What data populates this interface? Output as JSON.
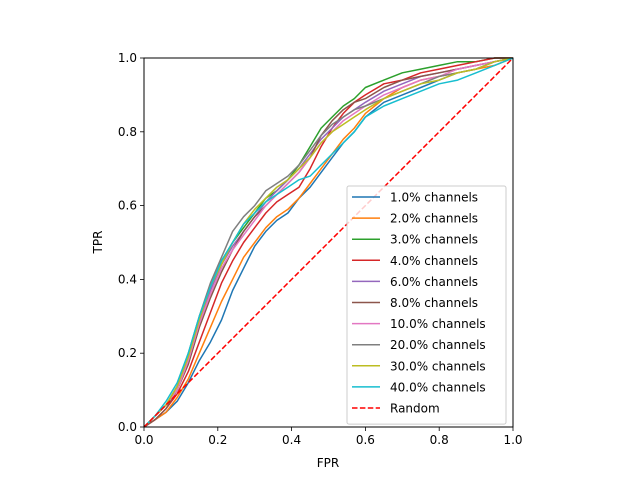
{
  "chart_data": {
    "type": "line",
    "title": "",
    "xlabel": "FPR",
    "ylabel": "TPR",
    "xlim": [
      0,
      1
    ],
    "ylim": [
      0,
      1
    ],
    "xticks": [
      "0.0",
      "0.2",
      "0.4",
      "0.6",
      "0.8",
      "1.0"
    ],
    "yticks": [
      "0.0",
      "0.2",
      "0.4",
      "0.6",
      "0.8",
      "1.0"
    ],
    "grid": false,
    "legend_position": "lower-right",
    "series": [
      {
        "name": "1.0% channels",
        "color": "#1f77b4",
        "x": [
          0,
          0.03,
          0.06,
          0.09,
          0.12,
          0.15,
          0.18,
          0.21,
          0.24,
          0.27,
          0.3,
          0.33,
          0.36,
          0.39,
          0.42,
          0.45,
          0.48,
          0.51,
          0.54,
          0.57,
          0.6,
          0.65,
          0.7,
          0.75,
          0.8,
          0.85,
          0.9,
          0.95,
          1.0
        ],
        "y": [
          0,
          0.02,
          0.04,
          0.07,
          0.12,
          0.18,
          0.23,
          0.29,
          0.37,
          0.43,
          0.49,
          0.53,
          0.56,
          0.58,
          0.62,
          0.65,
          0.69,
          0.73,
          0.77,
          0.8,
          0.84,
          0.88,
          0.9,
          0.92,
          0.94,
          0.96,
          0.97,
          0.99,
          1.0
        ]
      },
      {
        "name": "2.0% channels",
        "color": "#ff7f0e",
        "x": [
          0,
          0.03,
          0.06,
          0.09,
          0.12,
          0.15,
          0.18,
          0.21,
          0.24,
          0.27,
          0.3,
          0.33,
          0.36,
          0.39,
          0.42,
          0.45,
          0.48,
          0.51,
          0.54,
          0.57,
          0.6,
          0.65,
          0.7,
          0.75,
          0.8,
          0.85,
          0.9,
          0.95,
          1.0
        ],
        "y": [
          0,
          0.02,
          0.04,
          0.08,
          0.13,
          0.2,
          0.27,
          0.34,
          0.4,
          0.46,
          0.5,
          0.54,
          0.57,
          0.59,
          0.62,
          0.66,
          0.7,
          0.74,
          0.78,
          0.81,
          0.85,
          0.89,
          0.92,
          0.94,
          0.95,
          0.96,
          0.97,
          0.98,
          1.0
        ]
      },
      {
        "name": "3.0% channels",
        "color": "#2ca02c",
        "x": [
          0,
          0.03,
          0.06,
          0.09,
          0.12,
          0.15,
          0.18,
          0.21,
          0.24,
          0.27,
          0.3,
          0.33,
          0.36,
          0.39,
          0.42,
          0.45,
          0.48,
          0.51,
          0.54,
          0.57,
          0.6,
          0.65,
          0.7,
          0.75,
          0.8,
          0.85,
          0.9,
          0.95,
          1.0
        ],
        "y": [
          0,
          0.03,
          0.06,
          0.11,
          0.19,
          0.29,
          0.38,
          0.45,
          0.5,
          0.54,
          0.58,
          0.62,
          0.64,
          0.67,
          0.71,
          0.76,
          0.81,
          0.84,
          0.87,
          0.89,
          0.92,
          0.94,
          0.96,
          0.97,
          0.98,
          0.99,
          0.99,
          1.0,
          1.0
        ]
      },
      {
        "name": "4.0% channels",
        "color": "#d62728",
        "x": [
          0,
          0.03,
          0.06,
          0.09,
          0.12,
          0.15,
          0.18,
          0.21,
          0.24,
          0.27,
          0.3,
          0.33,
          0.36,
          0.39,
          0.42,
          0.45,
          0.48,
          0.51,
          0.54,
          0.57,
          0.6,
          0.65,
          0.7,
          0.75,
          0.8,
          0.85,
          0.9,
          0.95,
          1.0
        ],
        "y": [
          0,
          0.02,
          0.05,
          0.09,
          0.15,
          0.23,
          0.31,
          0.39,
          0.45,
          0.5,
          0.54,
          0.58,
          0.61,
          0.63,
          0.65,
          0.7,
          0.76,
          0.81,
          0.85,
          0.88,
          0.9,
          0.93,
          0.94,
          0.96,
          0.97,
          0.98,
          0.99,
          1.0,
          1.0
        ]
      },
      {
        "name": "6.0% channels",
        "color": "#9467bd",
        "x": [
          0,
          0.03,
          0.06,
          0.09,
          0.12,
          0.15,
          0.18,
          0.21,
          0.24,
          0.27,
          0.3,
          0.33,
          0.36,
          0.39,
          0.42,
          0.45,
          0.48,
          0.51,
          0.54,
          0.57,
          0.6,
          0.65,
          0.7,
          0.75,
          0.8,
          0.85,
          0.9,
          0.95,
          1.0
        ],
        "y": [
          0,
          0.03,
          0.06,
          0.11,
          0.19,
          0.29,
          0.37,
          0.44,
          0.49,
          0.53,
          0.57,
          0.61,
          0.64,
          0.67,
          0.7,
          0.74,
          0.78,
          0.81,
          0.84,
          0.86,
          0.88,
          0.91,
          0.93,
          0.95,
          0.96,
          0.97,
          0.98,
          0.99,
          1.0
        ]
      },
      {
        "name": "8.0% channels",
        "color": "#8c564b",
        "x": [
          0,
          0.03,
          0.06,
          0.09,
          0.12,
          0.15,
          0.18,
          0.21,
          0.24,
          0.27,
          0.3,
          0.33,
          0.36,
          0.39,
          0.42,
          0.45,
          0.48,
          0.51,
          0.54,
          0.57,
          0.6,
          0.65,
          0.7,
          0.75,
          0.8,
          0.85,
          0.9,
          0.95,
          1.0
        ],
        "y": [
          0,
          0.02,
          0.05,
          0.1,
          0.17,
          0.27,
          0.35,
          0.42,
          0.48,
          0.53,
          0.57,
          0.6,
          0.63,
          0.66,
          0.69,
          0.73,
          0.79,
          0.83,
          0.86,
          0.88,
          0.89,
          0.92,
          0.94,
          0.95,
          0.96,
          0.97,
          0.98,
          0.99,
          1.0
        ]
      },
      {
        "name": "10.0% channels",
        "color": "#e377c2",
        "x": [
          0,
          0.03,
          0.06,
          0.09,
          0.12,
          0.15,
          0.18,
          0.21,
          0.24,
          0.27,
          0.3,
          0.33,
          0.36,
          0.39,
          0.42,
          0.45,
          0.48,
          0.51,
          0.54,
          0.57,
          0.6,
          0.65,
          0.7,
          0.75,
          0.8,
          0.85,
          0.9,
          0.95,
          1.0
        ],
        "y": [
          0,
          0.03,
          0.06,
          0.1,
          0.18,
          0.28,
          0.36,
          0.43,
          0.48,
          0.52,
          0.56,
          0.6,
          0.63,
          0.66,
          0.69,
          0.73,
          0.77,
          0.8,
          0.83,
          0.85,
          0.87,
          0.9,
          0.92,
          0.94,
          0.95,
          0.97,
          0.98,
          0.99,
          1.0
        ]
      },
      {
        "name": "20.0% channels",
        "color": "#7f7f7f",
        "x": [
          0,
          0.03,
          0.06,
          0.09,
          0.12,
          0.15,
          0.18,
          0.21,
          0.24,
          0.27,
          0.3,
          0.33,
          0.36,
          0.39,
          0.42,
          0.45,
          0.48,
          0.51,
          0.54,
          0.57,
          0.6,
          0.65,
          0.7,
          0.75,
          0.8,
          0.85,
          0.9,
          0.95,
          1.0
        ],
        "y": [
          0,
          0.03,
          0.06,
          0.11,
          0.2,
          0.3,
          0.39,
          0.46,
          0.53,
          0.57,
          0.6,
          0.64,
          0.66,
          0.68,
          0.71,
          0.75,
          0.79,
          0.82,
          0.84,
          0.86,
          0.87,
          0.89,
          0.91,
          0.93,
          0.95,
          0.96,
          0.97,
          0.99,
          1.0
        ]
      },
      {
        "name": "30.0% channels",
        "color": "#bcbd22",
        "x": [
          0,
          0.03,
          0.06,
          0.09,
          0.12,
          0.15,
          0.18,
          0.21,
          0.24,
          0.27,
          0.3,
          0.33,
          0.36,
          0.39,
          0.42,
          0.45,
          0.48,
          0.51,
          0.54,
          0.57,
          0.6,
          0.65,
          0.7,
          0.75,
          0.8,
          0.85,
          0.9,
          0.95,
          1.0
        ],
        "y": [
          0,
          0.03,
          0.06,
          0.11,
          0.19,
          0.29,
          0.38,
          0.44,
          0.5,
          0.55,
          0.59,
          0.62,
          0.65,
          0.67,
          0.7,
          0.73,
          0.77,
          0.8,
          0.82,
          0.84,
          0.86,
          0.89,
          0.91,
          0.93,
          0.94,
          0.96,
          0.97,
          0.99,
          1.0
        ]
      },
      {
        "name": "40.0% channels",
        "color": "#17becf",
        "x": [
          0,
          0.03,
          0.06,
          0.09,
          0.12,
          0.15,
          0.18,
          0.21,
          0.24,
          0.27,
          0.3,
          0.33,
          0.36,
          0.39,
          0.42,
          0.45,
          0.48,
          0.51,
          0.54,
          0.57,
          0.6,
          0.65,
          0.7,
          0.75,
          0.8,
          0.85,
          0.9,
          0.95,
          1.0
        ],
        "y": [
          0,
          0.03,
          0.07,
          0.12,
          0.2,
          0.3,
          0.38,
          0.45,
          0.5,
          0.55,
          0.58,
          0.61,
          0.63,
          0.65,
          0.67,
          0.68,
          0.71,
          0.74,
          0.77,
          0.8,
          0.84,
          0.87,
          0.89,
          0.91,
          0.93,
          0.94,
          0.96,
          0.98,
          1.0
        ]
      },
      {
        "name": "Random",
        "color": "#ff0000",
        "dashed": true,
        "x": [
          0,
          1
        ],
        "y": [
          0,
          1
        ]
      }
    ]
  }
}
